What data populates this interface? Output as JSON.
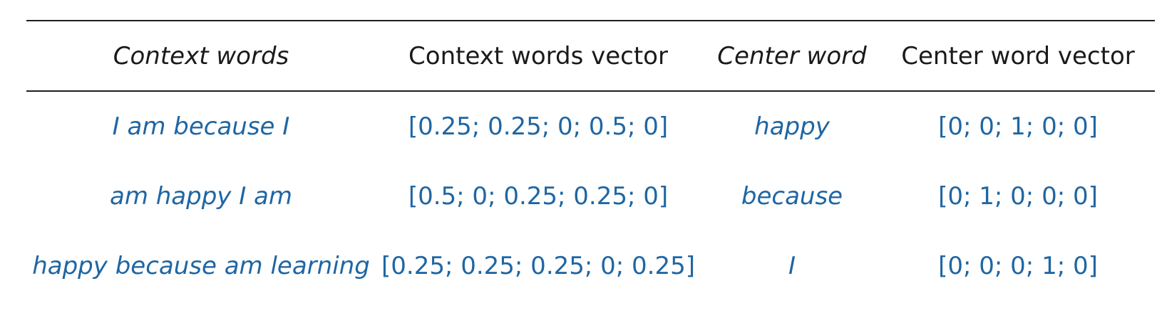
{
  "table": {
    "headers": [
      "Context words",
      "Context words vector",
      "Center word",
      "Center word vector"
    ],
    "rows": [
      {
        "context_words": "I am because I",
        "context_words_vector": "[0.25; 0.25; 0; 0.5; 0]",
        "center_word": "happy",
        "center_word_vector": "[0; 0; 1; 0; 0]"
      },
      {
        "context_words": "am happy I am",
        "context_words_vector": "[0.5; 0; 0.25; 0.25; 0]",
        "center_word": "because",
        "center_word_vector": "[0; 1; 0; 0; 0]"
      },
      {
        "context_words": "happy because am learning",
        "context_words_vector": "[0.25; 0.25; 0.25; 0; 0.25]",
        "center_word": "I",
        "center_word_vector": "[0; 0; 0; 1; 0]"
      }
    ]
  },
  "colors": {
    "header_text": "#1a1a1a",
    "value_text": "#1f66a3",
    "rule": "#1f1f1f"
  }
}
